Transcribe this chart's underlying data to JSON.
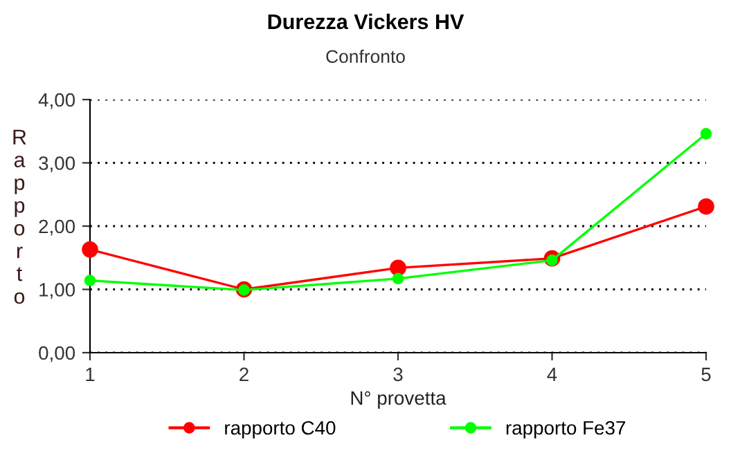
{
  "chart_data": {
    "type": "line",
    "title": "Durezza Vickers HV",
    "subtitle": "Confronto",
    "xlabel": "N° provetta",
    "ylabel": "Rapporto",
    "x": [
      1,
      2,
      3,
      4,
      5
    ],
    "series": [
      {
        "name": "rapporto C40",
        "color": "#ff0000",
        "values": [
          1.63,
          1.0,
          1.34,
          1.49,
          2.31
        ]
      },
      {
        "name": "rapporto Fe37",
        "color": "#00ff00",
        "values": [
          1.14,
          0.99,
          1.17,
          1.46,
          3.46
        ]
      }
    ],
    "xlim": [
      1,
      5
    ],
    "xticks": [
      1,
      2,
      3,
      4,
      5
    ],
    "ylim": [
      0,
      4
    ],
    "yticks": [
      {
        "value": 0,
        "label": "0,00"
      },
      {
        "value": 1,
        "label": "1,00"
      },
      {
        "value": 2,
        "label": "2,00"
      },
      {
        "value": 3,
        "label": "3,00"
      },
      {
        "value": 4,
        "label": "4,00"
      }
    ],
    "grid": "y",
    "legend": "bottom",
    "marker": "circle",
    "line_style": "solid"
  }
}
